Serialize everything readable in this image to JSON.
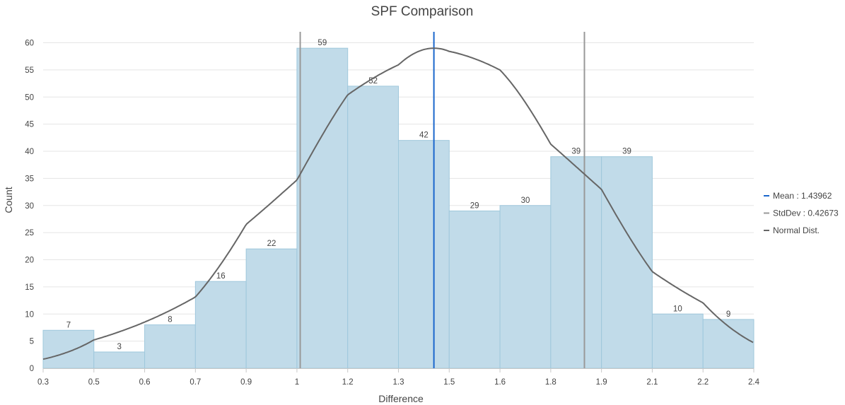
{
  "chart_data": {
    "type": "bar",
    "title": "SPF Comparison",
    "xlabel": "Difference",
    "ylabel": "Count",
    "ylim": [
      0,
      60
    ],
    "yticks": [
      "0",
      "5",
      "10",
      "15",
      "20",
      "25",
      "30",
      "35",
      "40",
      "45",
      "50",
      "55",
      "60"
    ],
    "xticks": [
      "0.3",
      "0.5",
      "0.6",
      "0.7",
      "0.9",
      "1",
      "1.2",
      "1.3",
      "1.5",
      "1.6",
      "1.8",
      "1.9",
      "2.1",
      "2.2",
      "2.4"
    ],
    "bin_edges": [
      0.3,
      0.5,
      0.6,
      0.7,
      0.9,
      1,
      1.2,
      1.3,
      1.5,
      1.6,
      1.8,
      1.9,
      2.1,
      2.2,
      2.4
    ],
    "values": [
      7,
      3,
      8,
      16,
      22,
      59,
      52,
      42,
      29,
      30,
      39,
      39,
      10,
      9
    ],
    "mean": 1.43962,
    "stddev": 0.42673,
    "normal_dist_peak": 59,
    "grid": true,
    "legend_position": "right",
    "legend": [
      {
        "label": "Mean : 1.43962",
        "color": "#1a66cc"
      },
      {
        "label": "StdDev : 0.42673",
        "color": "#999999"
      },
      {
        "label": "Normal Dist.",
        "color": "#666666"
      }
    ],
    "colors": {
      "bar_fill": "#c1dbe9",
      "bar_stroke": "#9fc8dc",
      "mean_line": "#1a66cc",
      "stddev_line": "#999999",
      "normal_curve": "#666666",
      "grid": "#e5e5e5"
    }
  }
}
